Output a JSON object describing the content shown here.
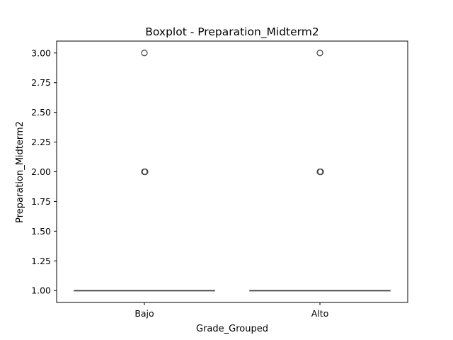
{
  "chart_data": {
    "type": "boxplot",
    "title": "Boxplot - Preparation_Midterm2",
    "xlabel": "Grade_Grouped",
    "ylabel": "Preparation_Midterm2",
    "categories": [
      "Bajo",
      "Alto"
    ],
    "ylim": [
      0.9,
      3.1
    ],
    "yticks": [
      "1.00",
      "1.25",
      "1.50",
      "1.75",
      "2.00",
      "2.25",
      "2.50",
      "2.75",
      "3.00"
    ],
    "grid": false,
    "boxes": [
      {
        "category": "Bajo",
        "min": 1.0,
        "q1": 1.0,
        "median": 1.0,
        "q3": 1.0,
        "max": 1.0,
        "outliers": [
          2.0,
          3.0
        ]
      },
      {
        "category": "Alto",
        "min": 1.0,
        "q1": 1.0,
        "median": 1.0,
        "q3": 1.0,
        "max": 1.0,
        "outliers": [
          2.0,
          3.0
        ]
      }
    ],
    "colors": {
      "box_fill": "#4c72b0",
      "line": "#3f3f3f",
      "axis": "#000000"
    }
  }
}
